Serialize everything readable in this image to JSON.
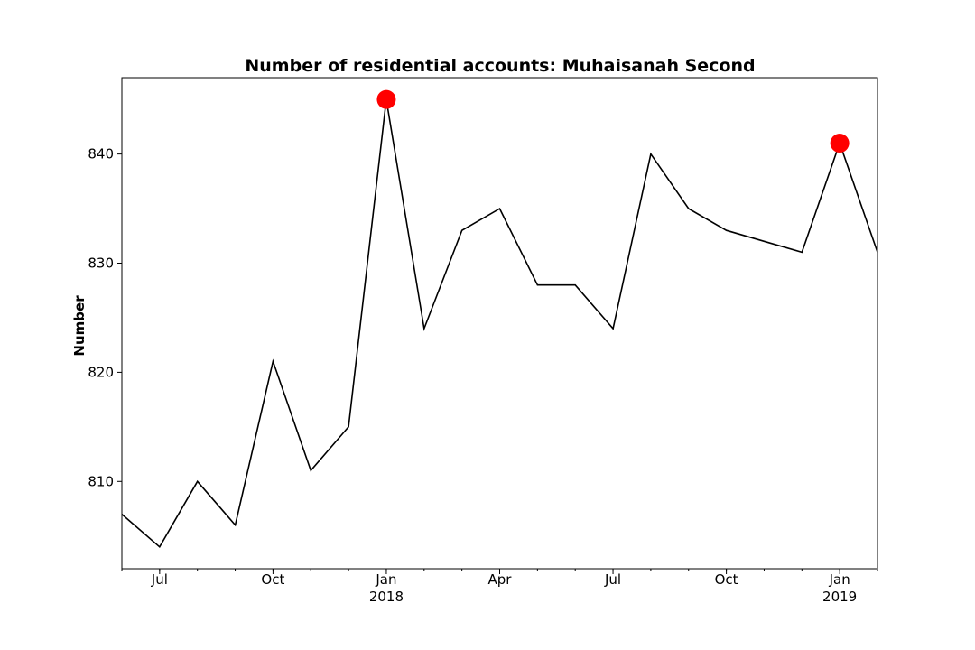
{
  "chart_data": {
    "type": "line",
    "title": "Number of residential accounts: Muhaisanah Second",
    "xlabel": "",
    "ylabel": "Number",
    "x": [
      "2017-06",
      "2017-07",
      "2017-08",
      "2017-09",
      "2017-10",
      "2017-11",
      "2017-12",
      "2018-01",
      "2018-02",
      "2018-03",
      "2018-04",
      "2018-05",
      "2018-06",
      "2018-07",
      "2018-08",
      "2018-09",
      "2018-10",
      "2018-11",
      "2018-12",
      "2019-01",
      "2019-02"
    ],
    "series": [
      {
        "values": [
          807,
          804,
          810,
          806,
          821,
          811,
          815,
          845,
          824,
          833,
          835,
          828,
          828,
          824,
          840,
          835,
          833,
          832,
          831,
          841,
          831
        ]
      }
    ],
    "highlighted_points": [
      {
        "x": "2018-01",
        "y": 845
      },
      {
        "x": "2019-01",
        "y": 841
      }
    ],
    "ylim": [
      802,
      847
    ],
    "xlim": [
      "2017-06",
      "2019-02"
    ],
    "yticks": [
      810,
      820,
      830,
      840
    ],
    "xticks": [
      {
        "x": "2017-07",
        "label": "Jul",
        "year": ""
      },
      {
        "x": "2017-10",
        "label": "Oct",
        "year": ""
      },
      {
        "x": "2018-01",
        "label": "Jan",
        "year": "2018"
      },
      {
        "x": "2018-04",
        "label": "Apr",
        "year": ""
      },
      {
        "x": "2018-07",
        "label": "Jul",
        "year": ""
      },
      {
        "x": "2018-10",
        "label": "Oct",
        "year": ""
      },
      {
        "x": "2019-01",
        "label": "Jan",
        "year": "2019"
      }
    ],
    "grid": false,
    "line_color": "#000000",
    "highlight_color": "#ff0000"
  }
}
